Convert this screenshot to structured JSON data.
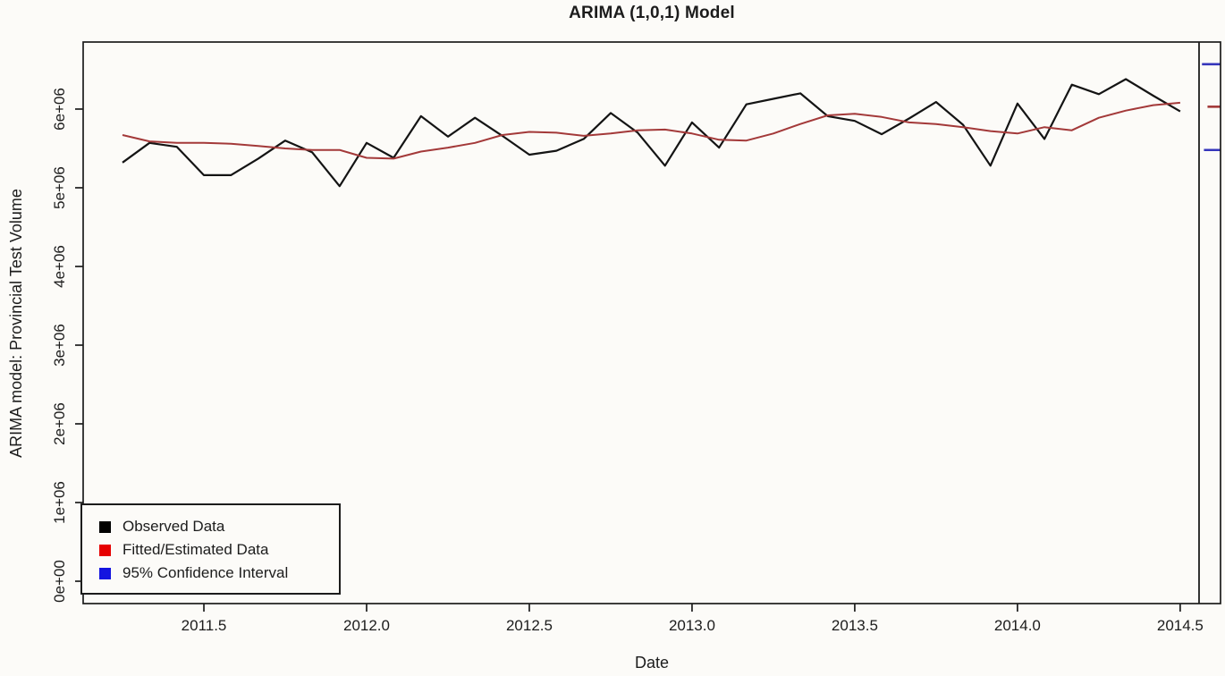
{
  "page": {
    "background": "#fcfbf8"
  },
  "chart_data": {
    "type": "line",
    "title": "ARIMA (1,0,1) Model",
    "xlabel": "Date",
    "ylabel": "ARIMA model: Provincial Test Volume",
    "grid": false,
    "xlim": [
      2011.129,
      2014.624
    ],
    "ylim": [
      -284000,
      6852000
    ],
    "x_ticks": [
      {
        "value": 2011.5,
        "label": "2011.5"
      },
      {
        "value": 2012.0,
        "label": "2012.0"
      },
      {
        "value": 2012.5,
        "label": "2012.5"
      },
      {
        "value": 2013.0,
        "label": "2013.0"
      },
      {
        "value": 2013.5,
        "label": "2013.5"
      },
      {
        "value": 2014.0,
        "label": "2014.0"
      },
      {
        "value": 2014.5,
        "label": "2014.5"
      }
    ],
    "y_ticks": [
      {
        "value": 0,
        "label": "0e+00"
      },
      {
        "value": 1000000,
        "label": "1e+06"
      },
      {
        "value": 2000000,
        "label": "2e+06"
      },
      {
        "value": 3000000,
        "label": "3e+06"
      },
      {
        "value": 4000000,
        "label": "4e+06"
      },
      {
        "value": 5000000,
        "label": "5e+06"
      },
      {
        "value": 6000000,
        "label": "6e+06"
      }
    ],
    "x": [
      2011.25,
      2011.333,
      2011.417,
      2011.5,
      2011.583,
      2011.667,
      2011.75,
      2011.833,
      2011.917,
      2012.0,
      2012.083,
      2012.167,
      2012.25,
      2012.333,
      2012.417,
      2012.5,
      2012.583,
      2012.667,
      2012.75,
      2012.833,
      2012.917,
      2013.0,
      2013.083,
      2013.167,
      2013.25,
      2013.333,
      2013.417,
      2013.5,
      2013.583,
      2013.667,
      2013.75,
      2013.833,
      2013.917,
      2014.0,
      2014.083,
      2014.167,
      2014.25,
      2014.333,
      2014.417,
      2014.5
    ],
    "series": [
      {
        "name": "Observed Data",
        "color": "#141414",
        "values": [
          5320000,
          5570000,
          5520000,
          5160000,
          5160000,
          5370000,
          5600000,
          5450000,
          5020000,
          5570000,
          5380000,
          5910000,
          5650000,
          5890000,
          5660000,
          5420000,
          5470000,
          5620000,
          5950000,
          5700000,
          5280000,
          5830000,
          5510000,
          6060000,
          6130000,
          6200000,
          5910000,
          5850000,
          5680000,
          5880000,
          6090000,
          5800000,
          5280000,
          6070000,
          5620000,
          6310000,
          6190000,
          6380000,
          6170000,
          5970000
        ]
      },
      {
        "name": "Fitted/Estimated Data",
        "color": "#a33939",
        "values": [
          5670000,
          5590000,
          5570000,
          5570000,
          5560000,
          5530000,
          5500000,
          5480000,
          5480000,
          5380000,
          5370000,
          5460000,
          5510000,
          5570000,
          5670000,
          5710000,
          5700000,
          5660000,
          5690000,
          5730000,
          5740000,
          5690000,
          5610000,
          5600000,
          5690000,
          5810000,
          5920000,
          5940000,
          5900000,
          5830000,
          5810000,
          5770000,
          5720000,
          5690000,
          5770000,
          5730000,
          5890000,
          5980000,
          6050000,
          6080000
        ]
      }
    ],
    "forecast": {
      "divider_x": 2014.558,
      "upper_ci": {
        "x1": 2014.567,
        "x2": 2014.624,
        "value": 6570000,
        "color": "#3535bb"
      },
      "point": {
        "x1": 2014.584,
        "x2": 2014.624,
        "value": 6030000,
        "color": "#a33939"
      },
      "lower_ci": {
        "x1": 2014.573,
        "x2": 2014.624,
        "value": 5480000,
        "color": "#3535bb"
      }
    },
    "legend": {
      "position": "bottom-left",
      "items": [
        {
          "label": "Observed Data",
          "color": "#000000"
        },
        {
          "label": "Fitted/Estimated Data",
          "color": "#e60000"
        },
        {
          "label": "95% Confidence Interval",
          "color": "#1414e0"
        }
      ]
    }
  }
}
